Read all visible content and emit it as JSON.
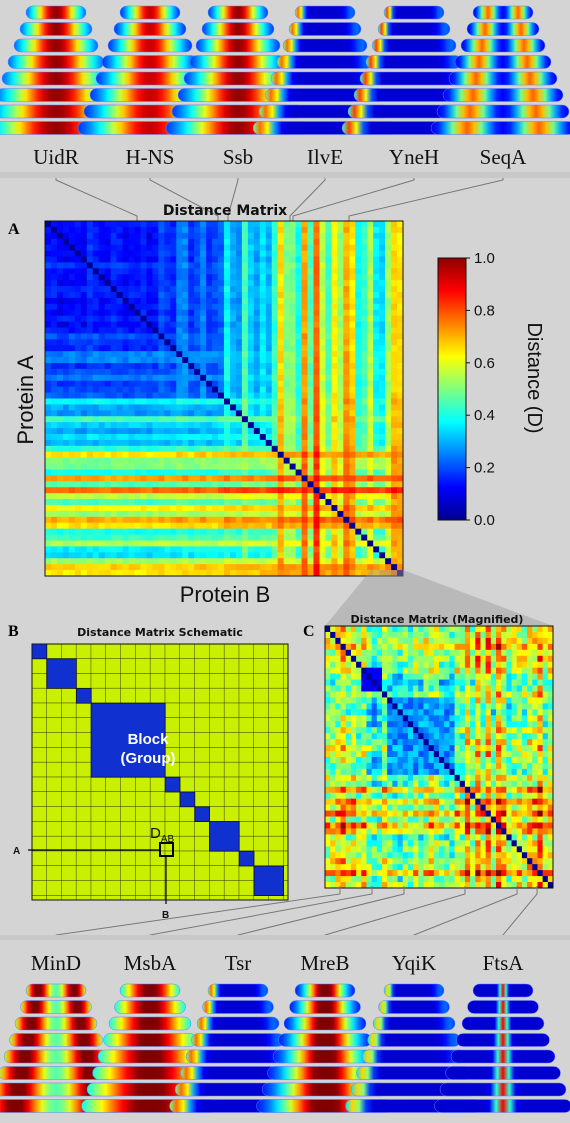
{
  "top_genes": [
    "UidR",
    "H-NS",
    "Ssb",
    "IlvE",
    "YneH",
    "SeqA"
  ],
  "bottom_genes": [
    "MinD",
    "MsbA",
    "Tsr",
    "MreB",
    "YqiK",
    "FtsA"
  ],
  "panel_a": {
    "letter": "A",
    "title": "Distance Matrix",
    "ylabel": "Protein A",
    "xlabel": "Protein B",
    "colorbar_label": "Distance (D)",
    "colorbar_ticks": [
      "1.0",
      "0.8",
      "0.6",
      "0.4",
      "0.2",
      "0.0"
    ]
  },
  "panel_b": {
    "letter": "B",
    "title": "Distance Matrix Schematic",
    "block_label_1": "Block",
    "block_label_2": "(Group)",
    "dab_main": "D",
    "dab_sub": "AB",
    "axis_a": "A",
    "axis_b": "B"
  },
  "panel_c": {
    "letter": "C",
    "title": "Distance Matrix (Magnified)"
  },
  "colors": {
    "low": "#00008f",
    "mid": "#7fff7f",
    "high": "#8f0000",
    "schematic_bg": "#c8f000",
    "block": "#1030d0"
  }
}
